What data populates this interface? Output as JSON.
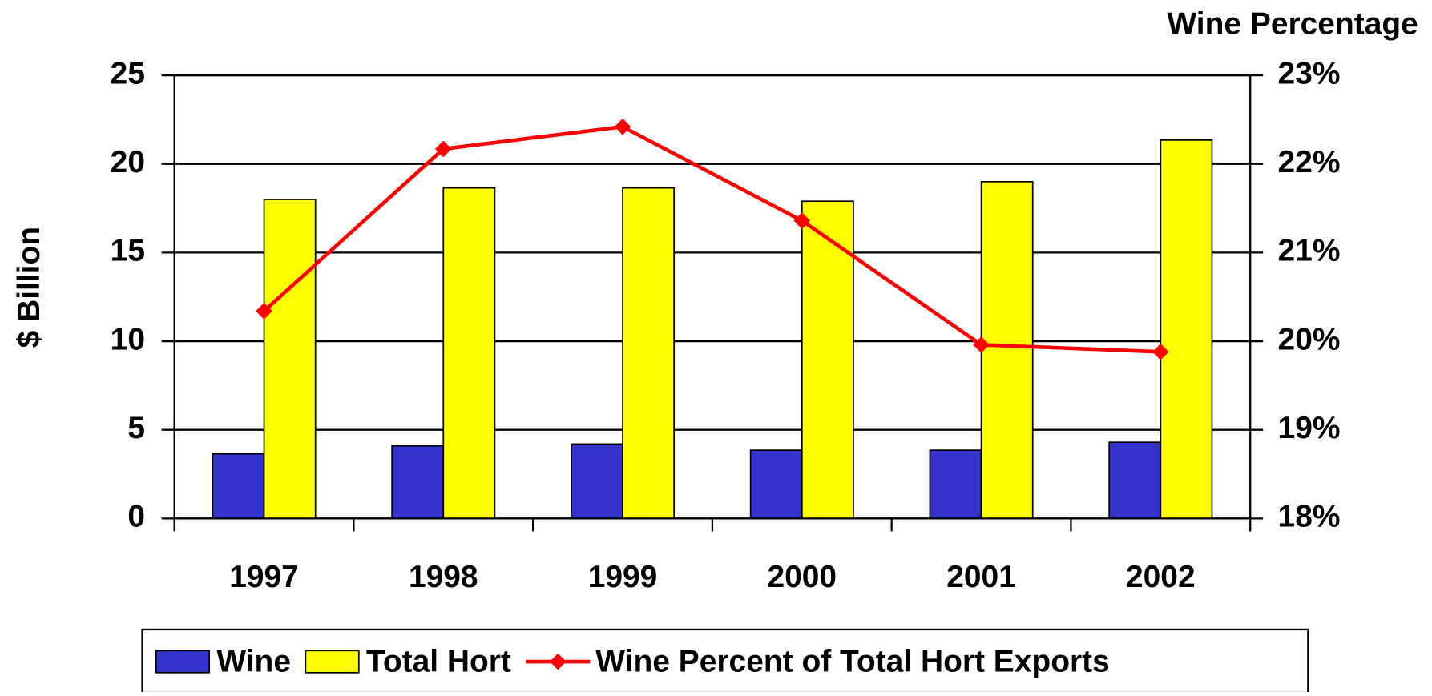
{
  "chart_data": {
    "type": "bar",
    "y2_title": "Wine Percentage",
    "ylabel": "$ Billion",
    "categories": [
      "1997",
      "1998",
      "1999",
      "2000",
      "2001",
      "2002"
    ],
    "series": [
      {
        "name": "Wine",
        "color": "#3333cc",
        "type": "bar",
        "values": [
          3.65,
          4.1,
          4.2,
          3.85,
          3.85,
          4.3
        ]
      },
      {
        "name": "Total Hort",
        "color": "#ffff00",
        "type": "bar",
        "values": [
          18.0,
          18.65,
          18.65,
          17.9,
          19.0,
          21.35
        ]
      },
      {
        "name": "Wine Percent of Total Hort Exports",
        "color": "#ff0000",
        "type": "line",
        "axis": "y2",
        "values": [
          20.34,
          22.17,
          22.42,
          21.36,
          19.96,
          19.88
        ]
      }
    ],
    "ylim": [
      0,
      25
    ],
    "yticks": [
      0,
      5,
      10,
      15,
      20,
      25
    ],
    "y2lim": [
      18,
      23
    ],
    "y2ticks": [
      {
        "value": 18,
        "label": "18%"
      },
      {
        "value": 19,
        "label": "19%"
      },
      {
        "value": 20,
        "label": "20%"
      },
      {
        "value": 21,
        "label": "21%"
      },
      {
        "value": 22,
        "label": "22%"
      },
      {
        "value": 23,
        "label": "23%"
      }
    ],
    "grid": true,
    "legend": "bottom"
  }
}
